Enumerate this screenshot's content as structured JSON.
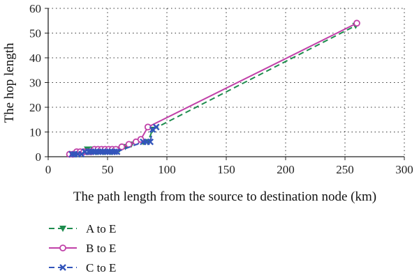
{
  "chart_data": {
    "type": "line",
    "xlabel": "The path length from the source to destination node (km)",
    "ylabel": "The hop length",
    "xlim": [
      0,
      300
    ],
    "ylim": [
      0,
      60
    ],
    "xticks": [
      0,
      50,
      100,
      150,
      200,
      250,
      300
    ],
    "yticks": [
      0,
      10,
      20,
      30,
      40,
      50,
      60
    ],
    "grid": true,
    "legend_position": "bottom-left",
    "series": [
      {
        "name": "A to E",
        "color": "#1e8c4e",
        "dash": "dashed",
        "marker": "triangle-down",
        "points": [
          [
            20,
            1
          ],
          [
            23,
            1
          ],
          [
            26,
            2
          ],
          [
            29,
            2
          ],
          [
            31,
            2
          ],
          [
            33,
            3
          ],
          [
            35,
            2
          ],
          [
            38,
            3
          ],
          [
            41,
            2
          ],
          [
            44,
            3
          ],
          [
            47,
            2
          ],
          [
            50,
            3
          ],
          [
            53,
            2
          ],
          [
            56,
            3
          ],
          [
            60,
            3
          ],
          [
            65,
            4
          ],
          [
            70,
            5
          ],
          [
            75,
            6
          ],
          [
            80,
            6
          ],
          [
            84,
            6
          ],
          [
            88,
            11
          ],
          [
            259,
            53
          ]
        ]
      },
      {
        "name": "B to E",
        "color": "#c040a8",
        "dash": "solid",
        "marker": "circle",
        "points": [
          [
            18,
            1
          ],
          [
            21,
            1
          ],
          [
            24,
            2
          ],
          [
            27,
            2
          ],
          [
            30,
            2
          ],
          [
            33,
            2
          ],
          [
            36,
            2
          ],
          [
            39,
            3
          ],
          [
            42,
            3
          ],
          [
            45,
            3
          ],
          [
            48,
            3
          ],
          [
            51,
            3
          ],
          [
            54,
            3
          ],
          [
            57,
            3
          ],
          [
            62,
            4
          ],
          [
            68,
            5
          ],
          [
            74,
            6
          ],
          [
            78,
            7
          ],
          [
            84,
            12
          ],
          [
            260,
            54
          ]
        ]
      },
      {
        "name": "C to E",
        "color": "#3355bb",
        "dash": "dashed",
        "marker": "x",
        "points": [
          [
            20,
            1
          ],
          [
            22,
            1
          ],
          [
            25,
            1
          ],
          [
            28,
            1
          ],
          [
            31,
            2
          ],
          [
            34,
            2
          ],
          [
            36,
            2
          ],
          [
            38,
            2
          ],
          [
            40,
            2
          ],
          [
            42,
            2
          ],
          [
            44,
            2
          ],
          [
            46,
            2
          ],
          [
            48,
            2
          ],
          [
            50,
            2
          ],
          [
            52,
            2
          ],
          [
            54,
            2
          ],
          [
            56,
            2
          ],
          [
            58,
            2
          ],
          [
            80,
            6
          ],
          [
            83,
            6
          ],
          [
            86,
            6
          ],
          [
            88,
            11
          ],
          [
            91,
            12
          ]
        ]
      }
    ]
  }
}
